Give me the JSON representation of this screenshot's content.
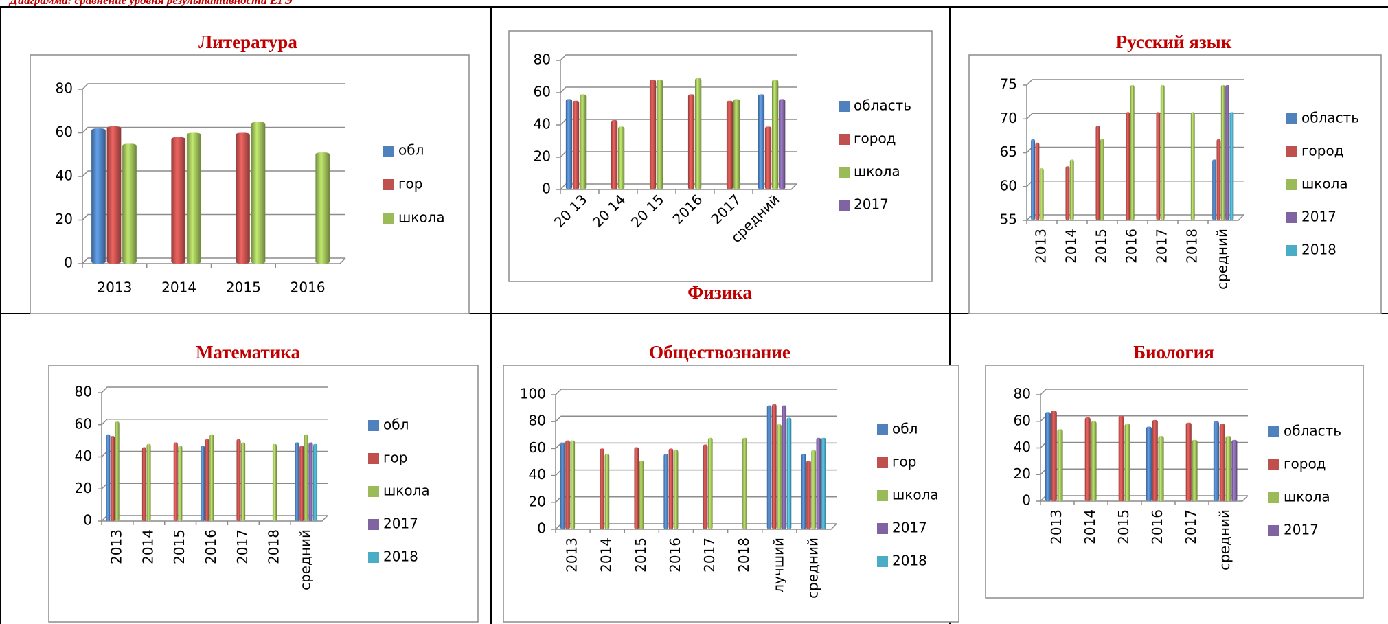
{
  "caption": "Диаграмма: сравнение уровня результативности ЕГЭ",
  "chart_data": [
    {
      "type": "bar",
      "title": "Литература",
      "categories": [
        "2013",
        "2014",
        "2015",
        "2016"
      ],
      "series": [
        {
          "name": "обл",
          "color": "#4f81bd",
          "values": [
            62,
            null,
            null,
            null
          ]
        },
        {
          "name": "гор",
          "color": "#c0504d",
          "values": [
            63,
            58,
            60,
            null
          ]
        },
        {
          "name": "школа",
          "color": "#9bbb59",
          "values": [
            55,
            60,
            65,
            51
          ]
        }
      ],
      "ylim": [
        0,
        80
      ],
      "yticks": [
        0,
        20,
        40,
        60,
        80
      ],
      "grid": true
    },
    {
      "type": "bar",
      "title": "Физика",
      "categories": [
        "20 13",
        "20 14",
        "20 15",
        "2016",
        "2017",
        "средний"
      ],
      "series": [
        {
          "name": "область",
          "color": "#4f81bd",
          "values": [
            56,
            0,
            0,
            0,
            null,
            59
          ]
        },
        {
          "name": "город",
          "color": "#c0504d",
          "values": [
            55,
            43,
            68,
            59,
            55,
            39
          ]
        },
        {
          "name": "школа",
          "color": "#9bbb59",
          "values": [
            59,
            39,
            68,
            69,
            56,
            68
          ]
        },
        {
          "name": "2017",
          "color": "#8064a2",
          "values": [
            null,
            null,
            null,
            null,
            null,
            56
          ]
        }
      ],
      "ylim": [
        0,
        80
      ],
      "yticks": [
        0,
        20,
        40,
        60,
        80
      ],
      "grid": true
    },
    {
      "type": "bar",
      "title": "Русский язык",
      "categories": [
        "2013",
        "2014",
        "2015",
        "2016",
        "2017",
        "2018",
        "средний"
      ],
      "series": [
        {
          "name": "область",
          "color": "#4f81bd",
          "values": [
            67,
            null,
            null,
            null,
            null,
            null,
            64
          ]
        },
        {
          "name": "город",
          "color": "#c0504d",
          "values": [
            66.5,
            63,
            69,
            71,
            71,
            null,
            67
          ]
        },
        {
          "name": "школа",
          "color": "#9bbb59",
          "values": [
            62.7,
            64,
            67,
            75,
            75,
            71,
            75
          ]
        },
        {
          "name": "2017",
          "color": "#8064a2",
          "values": [
            null,
            null,
            null,
            null,
            null,
            null,
            75
          ]
        },
        {
          "name": "2018",
          "color": "#4bacc6",
          "values": [
            null,
            null,
            null,
            null,
            null,
            null,
            71
          ]
        }
      ],
      "ylim": [
        55,
        75
      ],
      "yticks": [
        55,
        60,
        65,
        70,
        75
      ],
      "grid": true
    },
    {
      "type": "bar",
      "title": "Математика",
      "categories": [
        "2013",
        "2014",
        "2015",
        "2016",
        "2017",
        "2018",
        "средний"
      ],
      "series": [
        {
          "name": "обл",
          "color": "#4f81bd",
          "values": [
            54,
            null,
            null,
            47,
            null,
            null,
            49
          ]
        },
        {
          "name": "гор",
          "color": "#c0504d",
          "values": [
            53,
            46,
            49,
            51,
            51,
            null,
            47
          ]
        },
        {
          "name": "школа",
          "color": "#9bbb59",
          "values": [
            62,
            48,
            47,
            54,
            49,
            48,
            54
          ]
        },
        {
          "name": "2017",
          "color": "#8064a2",
          "values": [
            null,
            null,
            null,
            null,
            null,
            null,
            49
          ]
        },
        {
          "name": "2018",
          "color": "#4bacc6",
          "values": [
            null,
            null,
            null,
            null,
            null,
            null,
            48
          ]
        }
      ],
      "ylim": [
        0,
        80
      ],
      "yticks": [
        0,
        20,
        40,
        60,
        80
      ],
      "grid": true
    },
    {
      "type": "bar",
      "title": "Обществознание",
      "categories": [
        "2013",
        "2014",
        "2015",
        "2016",
        "2017",
        "2018",
        "лучший",
        "средний"
      ],
      "series": [
        {
          "name": "обл",
          "color": "#4f81bd",
          "values": [
            64,
            null,
            null,
            56,
            null,
            null,
            92,
            56
          ]
        },
        {
          "name": "гор",
          "color": "#c0504d",
          "values": [
            66,
            60,
            61,
            60,
            63,
            null,
            93,
            51
          ]
        },
        {
          "name": "школа",
          "color": "#9bbb59",
          "values": [
            66,
            56,
            51,
            59,
            68,
            68,
            78,
            59
          ]
        },
        {
          "name": "2017",
          "color": "#8064a2",
          "values": [
            null,
            null,
            null,
            null,
            null,
            null,
            92,
            68
          ]
        },
        {
          "name": "2018",
          "color": "#4bacc6",
          "values": [
            null,
            null,
            null,
            null,
            null,
            null,
            83,
            68
          ]
        }
      ],
      "ylim": [
        0,
        100
      ],
      "yticks": [
        0,
        20,
        40,
        60,
        80,
        100
      ],
      "grid": true
    },
    {
      "type": "bar",
      "title": "Биология",
      "categories": [
        "2013",
        "2014",
        "2015",
        "2016",
        "2017",
        "средний"
      ],
      "series": [
        {
          "name": "область",
          "color": "#4f81bd",
          "values": [
            67,
            0,
            0,
            56,
            null,
            60
          ]
        },
        {
          "name": "город",
          "color": "#c0504d",
          "values": [
            68,
            63,
            64,
            61,
            59,
            58
          ]
        },
        {
          "name": "школа",
          "color": "#9bbb59",
          "values": [
            54,
            60,
            58,
            49,
            46,
            49
          ]
        },
        {
          "name": "2017",
          "color": "#8064a2",
          "values": [
            null,
            null,
            null,
            null,
            null,
            46
          ]
        }
      ],
      "ylim": [
        0,
        80
      ],
      "yticks": [
        0,
        20,
        40,
        60,
        80
      ],
      "grid": true
    }
  ]
}
